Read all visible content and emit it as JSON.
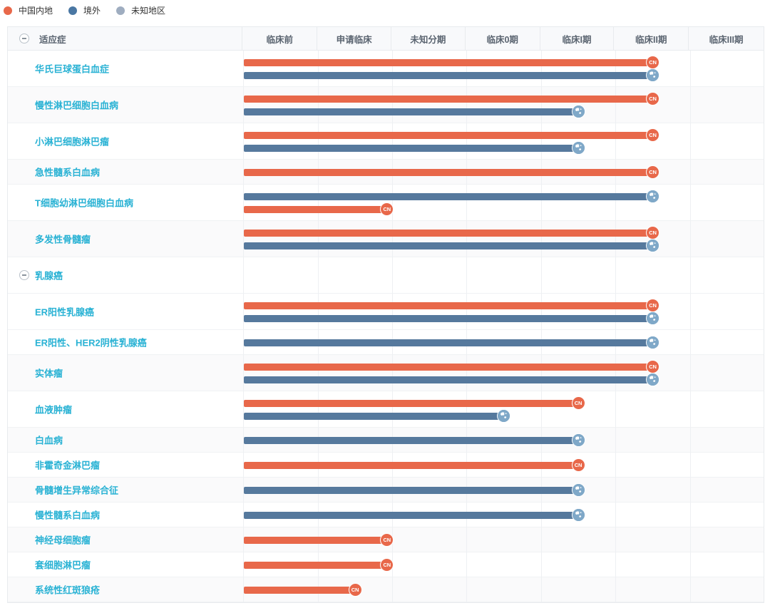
{
  "legend": {
    "items": [
      {
        "label": "中国内地",
        "color": "#e8684a"
      },
      {
        "label": "境外",
        "color": "#4a77a3"
      },
      {
        "label": "未知地区",
        "color": "#9fadc0"
      }
    ]
  },
  "badges": {
    "cn_label": "CN",
    "overseas_icon": "globe"
  },
  "table": {
    "indication_header": "适应症",
    "phase_columns": [
      "临床前",
      "申请临床",
      "未知分期",
      "临床0期",
      "临床I期",
      "临床II期",
      "临床III期"
    ],
    "colors": {
      "cn": "#e8684a",
      "overseas": "#56799d",
      "overseas_badge": "#7fa8c8",
      "label": "#29b2d4",
      "shaded_row": "#fafafb"
    },
    "rows": [
      {
        "label": "华氏巨球蛋白血症",
        "group": false,
        "shaded": false,
        "bars": [
          {
            "region": "cn",
            "end_phase": "临床II期",
            "end": 5.5
          },
          {
            "region": "overseas",
            "end_phase": "临床II期",
            "end": 5.5
          }
        ]
      },
      {
        "label": "慢性淋巴细胞白血病",
        "group": false,
        "shaded": true,
        "bars": [
          {
            "region": "cn",
            "end_phase": "临床II期",
            "end": 5.5
          },
          {
            "region": "overseas",
            "end_phase": "临床I期",
            "end": 4.5
          }
        ]
      },
      {
        "label": "小淋巴细胞淋巴瘤",
        "group": false,
        "shaded": false,
        "bars": [
          {
            "region": "cn",
            "end_phase": "临床II期",
            "end": 5.5
          },
          {
            "region": "overseas",
            "end_phase": "临床I期",
            "end": 4.5
          }
        ]
      },
      {
        "label": "急性髓系白血病",
        "group": false,
        "shaded": true,
        "bars": [
          {
            "region": "cn",
            "end_phase": "临床II期",
            "end": 5.5
          }
        ]
      },
      {
        "label": "T细胞幼淋巴细胞白血病",
        "group": false,
        "shaded": false,
        "bars": [
          {
            "region": "overseas",
            "end_phase": "临床II期",
            "end": 5.5
          },
          {
            "region": "cn",
            "end_phase": "申请临床",
            "end": 1.93
          }
        ]
      },
      {
        "label": "多发性骨髓瘤",
        "group": false,
        "shaded": true,
        "bars": [
          {
            "region": "cn",
            "end_phase": "临床II期",
            "end": 5.5
          },
          {
            "region": "overseas",
            "end_phase": "临床II期",
            "end": 5.5
          }
        ]
      },
      {
        "label": "乳腺癌",
        "group": true,
        "shaded": false,
        "bars": []
      },
      {
        "label": "ER阳性乳腺癌",
        "group": false,
        "shaded": false,
        "bars": [
          {
            "region": "cn",
            "end_phase": "临床II期",
            "end": 5.5
          },
          {
            "region": "overseas",
            "end_phase": "临床II期",
            "end": 5.5
          }
        ]
      },
      {
        "label": "ER阳性、HER2阴性乳腺癌",
        "group": false,
        "shaded": false,
        "bars": [
          {
            "region": "overseas",
            "end_phase": "临床II期",
            "end": 5.5
          }
        ]
      },
      {
        "label": "实体瘤",
        "group": false,
        "shaded": true,
        "bars": [
          {
            "region": "cn",
            "end_phase": "临床II期",
            "end": 5.5
          },
          {
            "region": "overseas",
            "end_phase": "临床II期",
            "end": 5.5
          }
        ]
      },
      {
        "label": "血液肿瘤",
        "group": false,
        "shaded": false,
        "bars": [
          {
            "region": "cn",
            "end_phase": "临床I期",
            "end": 4.5
          },
          {
            "region": "overseas",
            "end_phase": "临床0期",
            "end": 3.5
          }
        ]
      },
      {
        "label": "白血病",
        "group": false,
        "shaded": true,
        "bars": [
          {
            "region": "overseas",
            "end_phase": "临床I期",
            "end": 4.5
          }
        ]
      },
      {
        "label": "非霍奇金淋巴瘤",
        "group": false,
        "shaded": false,
        "bars": [
          {
            "region": "cn",
            "end_phase": "临床I期",
            "end": 4.5
          }
        ]
      },
      {
        "label": "骨髓增生异常综合征",
        "group": false,
        "shaded": true,
        "bars": [
          {
            "region": "overseas",
            "end_phase": "临床I期",
            "end": 4.5
          }
        ]
      },
      {
        "label": "慢性髓系白血病",
        "group": false,
        "shaded": false,
        "bars": [
          {
            "region": "overseas",
            "end_phase": "临床I期",
            "end": 4.5
          }
        ]
      },
      {
        "label": "神经母细胞瘤",
        "group": false,
        "shaded": true,
        "bars": [
          {
            "region": "cn",
            "end_phase": "申请临床",
            "end": 1.93
          }
        ]
      },
      {
        "label": "套细胞淋巴瘤",
        "group": false,
        "shaded": false,
        "bars": [
          {
            "region": "cn",
            "end_phase": "申请临床",
            "end": 1.93
          }
        ]
      },
      {
        "label": "系统性红斑狼疮",
        "group": false,
        "shaded": true,
        "bars": [
          {
            "region": "cn",
            "end_phase": "申请临床",
            "end": 1.5
          }
        ]
      }
    ]
  },
  "chart_data": {
    "type": "bar",
    "orientation": "horizontal",
    "title": "",
    "phase_axis": [
      "临床前",
      "申请临床",
      "未知分期",
      "临床0期",
      "临床I期",
      "临床II期",
      "临床III期"
    ],
    "categories": [
      "华氏巨球蛋白血症",
      "慢性淋巴细胞白血病",
      "小淋巴细胞淋巴瘤",
      "急性髓系白血病",
      "T细胞幼淋巴细胞白血病",
      "多发性骨髓瘤",
      "乳腺癌",
      "ER阳性乳腺癌",
      "ER阳性、HER2阴性乳腺癌",
      "实体瘤",
      "血液肿瘤",
      "白血病",
      "非霍奇金淋巴瘤",
      "骨髓增生异常综合征",
      "慢性髓系白血病",
      "神经母细胞瘤",
      "套细胞淋巴瘤",
      "系统性红斑狼疮"
    ],
    "series": [
      {
        "name": "中国内地",
        "color": "#e8684a",
        "phase_reached": [
          "临床II期",
          "临床II期",
          "临床II期",
          "临床II期",
          "申请临床",
          "临床II期",
          null,
          "临床II期",
          null,
          "临床II期",
          "临床I期",
          null,
          "临床I期",
          null,
          null,
          "申请临床",
          "申请临床",
          "申请临床"
        ]
      },
      {
        "name": "境外",
        "color": "#56799d",
        "phase_reached": [
          "临床II期",
          "临床I期",
          "临床I期",
          null,
          "临床II期",
          "临床II期",
          null,
          "临床II期",
          "临床II期",
          "临床II期",
          "临床0期",
          "临床I期",
          null,
          "临床I期",
          "临床I期",
          null,
          null,
          null
        ]
      },
      {
        "name": "未知地区",
        "color": "#9fadc0",
        "phase_reached": [
          null,
          null,
          null,
          null,
          null,
          null,
          null,
          null,
          null,
          null,
          null,
          null,
          null,
          null,
          null,
          null,
          null,
          null
        ]
      }
    ],
    "legend_position": "top-left"
  }
}
